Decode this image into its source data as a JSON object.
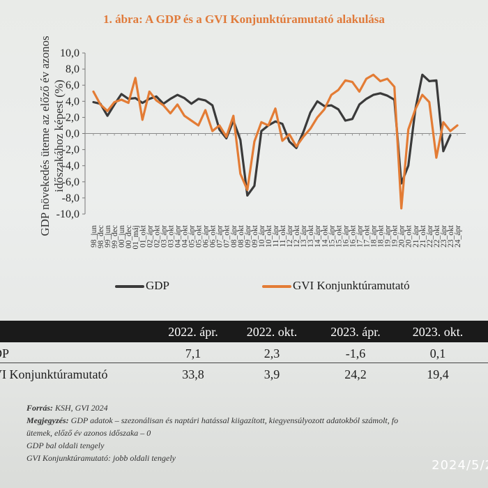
{
  "chart_data": {
    "type": "line",
    "title": "1. ábra: A GDP és a GVI Konjunktúramutató alakulása",
    "ylabel": "GDP növekedés üteme az előző év azonos időszakához képest (%)",
    "ylim": [
      -10,
      10
    ],
    "yticks": [
      "10,0",
      "8,0",
      "6,0",
      "4,0",
      "2,0",
      "0,0",
      "-2,0",
      "-4,0",
      "-6,0",
      "-8,0",
      "-10,0"
    ],
    "xticks": [
      "98_jun",
      "98_dec",
      "99_jun",
      "99_dec",
      "00_jun",
      "00_dec",
      "01_máj",
      "01_okt",
      "02_ápr",
      "02_okt",
      "03_ápr",
      "03_okt",
      "04_ápr",
      "04_okt",
      "05_ápr",
      "05_okt",
      "06_ápr",
      "06_okt",
      "07_ápr",
      "07_okt",
      "08_ápr",
      "08_okt",
      "09_ápr",
      "09_okt",
      "10_ápr",
      "10_okt",
      "11_ápr",
      "11_okt",
      "12_ápr",
      "12_okt",
      "13_ápr",
      "13_okt",
      "14_ápr",
      "14_okt",
      "15_ápr",
      "15_okt",
      "16_ápr",
      "16_okt",
      "17_ápr",
      "17_okt",
      "18_ápr",
      "18_okt",
      "19_ápr",
      "19_okt",
      "20_ápr",
      "20_okt",
      "21_ápr",
      "21_okt",
      "22_ápr",
      "22_okt",
      "23_ápr",
      "23_okt",
      "24_ápr"
    ],
    "series": [
      {
        "name": "GDP",
        "color": "#3a3a3a",
        "values": [
          3.9,
          3.7,
          2.2,
          3.6,
          4.9,
          4.3,
          4.4,
          3.8,
          4.3,
          4.6,
          3.7,
          4.3,
          4.8,
          4.4,
          3.7,
          4.3,
          4.1,
          3.5,
          0.5,
          -0.6,
          1.6,
          -0.8,
          -7.7,
          -6.5,
          0.3,
          1.0,
          1.5,
          1.2,
          -1.0,
          -1.8,
          0.2,
          2.6,
          4.0,
          3.4,
          3.5,
          3.0,
          1.6,
          1.8,
          3.6,
          4.3,
          4.8,
          5.0,
          4.7,
          4.2,
          -6.2,
          -4.0,
          3.0,
          7.3,
          6.5,
          6.6,
          -2.2,
          -0.2,
          null
        ]
      },
      {
        "name": "GVI Konjunktúramutató",
        "color": "#e37c35",
        "values": [
          5.2,
          3.6,
          2.8,
          3.9,
          4.2,
          3.8,
          6.9,
          1.7,
          5.2,
          4.1,
          3.5,
          2.5,
          3.6,
          2.2,
          1.6,
          1.0,
          2.9,
          0.3,
          1.0,
          -0.4,
          2.2,
          -5.0,
          -7.0,
          -1.0,
          1.4,
          1.0,
          3.1,
          -0.9,
          -0.1,
          -1.6,
          -0.4,
          0.6,
          2.0,
          3.0,
          4.8,
          5.4,
          6.6,
          6.4,
          5.2,
          6.8,
          7.3,
          6.5,
          6.8,
          5.8,
          -9.3,
          0.5,
          3.0,
          4.8,
          3.9,
          -3.0,
          1.4,
          0.3,
          1.0
        ]
      }
    ],
    "legend": "bottom"
  },
  "table": {
    "headers": [
      "2022. ápr.",
      "2022. okt.",
      "2023. ápr.",
      "2023. okt."
    ],
    "rows": [
      {
        "label": "DP",
        "values": [
          "7,1",
          "2,3",
          "-1,6",
          "0,1"
        ]
      },
      {
        "label": "VI Konjunktúramutató",
        "values": [
          "33,8",
          "3,9",
          "24,2",
          "19,4"
        ]
      }
    ]
  },
  "notes": {
    "source_label": "Forrás:",
    "source_text": " KSH, GVI 2024",
    "note_label": "Megjegyzés:",
    "note_text": " GDP adatok – szezonálisan és naptári hatással kiigazított, kiegyensúlyozott adatokból számolt, fo",
    "note_line2": "ütemek, előző év azonos időszaka – 0",
    "line3": "GDP bal oldali tengely",
    "line4": "GVI Konjunktúramutató: jobb oldali tengely"
  },
  "timestamp": "2024/5/2"
}
